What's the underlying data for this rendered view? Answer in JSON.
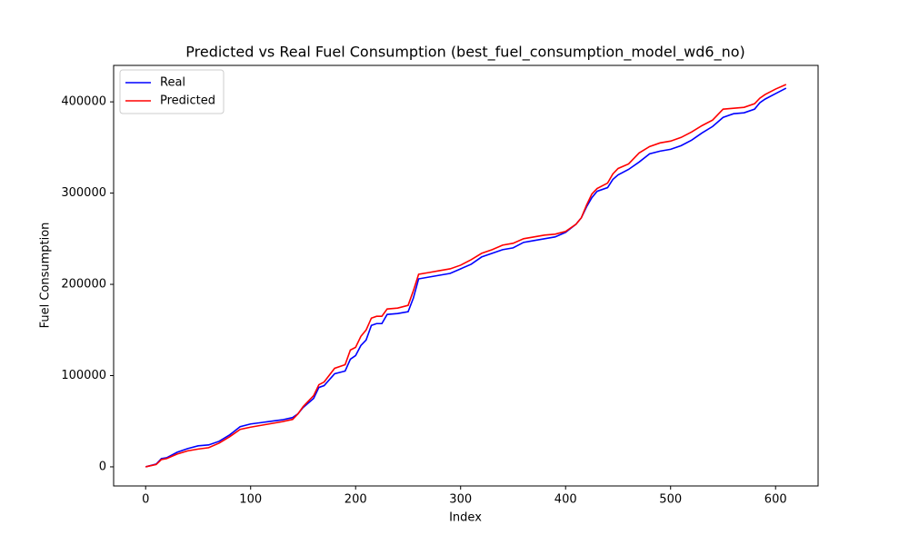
{
  "chart_data": {
    "type": "line",
    "title": "Predicted vs Real Fuel Consumption (best_fuel_consumption_model_wd6_no)",
    "x_label": "Index",
    "y_label": "Fuel Consumption",
    "x": [
      0,
      10,
      15,
      20,
      30,
      40,
      50,
      60,
      70,
      80,
      90,
      100,
      110,
      120,
      130,
      140,
      145,
      150,
      160,
      165,
      170,
      180,
      190,
      195,
      200,
      205,
      210,
      215,
      220,
      225,
      230,
      240,
      250,
      255,
      260,
      270,
      280,
      290,
      300,
      310,
      320,
      330,
      340,
      350,
      360,
      370,
      380,
      390,
      400,
      410,
      415,
      420,
      425,
      430,
      440,
      445,
      450,
      460,
      470,
      480,
      490,
      500,
      510,
      520,
      530,
      540,
      545,
      550,
      560,
      570,
      580,
      585,
      590,
      600,
      610
    ],
    "series": [
      {
        "name": "Real",
        "color": "#0000ff",
        "values": [
          0,
          3000,
          9000,
          10000,
          16000,
          20000,
          23000,
          24000,
          28000,
          35000,
          44000,
          47000,
          48500,
          50000,
          51500,
          54000,
          58000,
          65000,
          75000,
          87000,
          89000,
          102000,
          105000,
          118000,
          122000,
          133000,
          139000,
          155000,
          157000,
          157000,
          167000,
          168000,
          170000,
          185000,
          206000,
          208000,
          210000,
          212000,
          217000,
          222000,
          230000,
          234000,
          238000,
          240000,
          246000,
          248000,
          250000,
          252000,
          257000,
          266000,
          273000,
          285000,
          295000,
          302000,
          306000,
          315000,
          320000,
          326000,
          334000,
          343000,
          346000,
          348000,
          352000,
          358000,
          366000,
          373000,
          378000,
          383000,
          387000,
          388000,
          392000,
          399000,
          403000,
          409000,
          415000
        ]
      },
      {
        "name": "Predicted",
        "color": "#ff0000",
        "values": [
          0,
          2500,
          8000,
          9000,
          14000,
          17500,
          19500,
          21000,
          26000,
          33000,
          41000,
          43500,
          45500,
          47500,
          49500,
          52000,
          58000,
          66000,
          78000,
          90000,
          93000,
          108000,
          112000,
          128000,
          131000,
          143000,
          150000,
          163000,
          165000,
          165000,
          173000,
          174000,
          177000,
          193000,
          211000,
          213000,
          215000,
          217000,
          221000,
          227000,
          234000,
          238000,
          243000,
          245000,
          250000,
          252000,
          254000,
          255000,
          258000,
          266000,
          273000,
          287000,
          299000,
          305000,
          311000,
          321000,
          327000,
          332000,
          344000,
          351000,
          355000,
          357000,
          361000,
          367000,
          374000,
          380000,
          386000,
          392000,
          393000,
          394000,
          398000,
          404000,
          408000,
          414000,
          419000
        ]
      }
    ],
    "xlim": [
      -30.5,
      640.5
    ],
    "xticks": [
      0,
      100,
      200,
      300,
      400,
      500,
      600
    ],
    "ylim": [
      -20950,
      439950
    ],
    "yticks": [
      0,
      100000,
      200000,
      300000,
      400000
    ],
    "grid": false,
    "legend": "upper-left"
  }
}
